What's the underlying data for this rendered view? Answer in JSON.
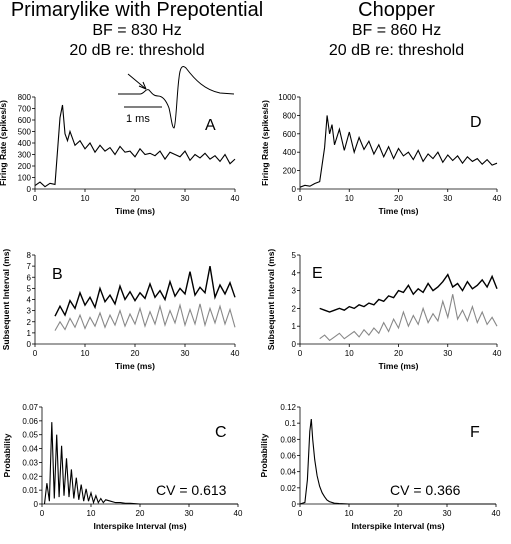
{
  "columns": [
    {
      "title": "Primarylike with Prepotential",
      "bf": "BF = 830 Hz",
      "level": "20 dB re: threshold"
    },
    {
      "title": "Chopper",
      "bf": "BF = 860 Hz",
      "level": "20 dB re: threshold"
    }
  ],
  "inset": {
    "scale_label": "1 ms"
  },
  "chart_data": [
    {
      "panel": "A",
      "type": "line",
      "xlabel": "Time (ms)",
      "ylabel": "Firing Rate (spikes/s)",
      "xlim": [
        0,
        40
      ],
      "ylim": [
        0,
        800
      ],
      "xticks": [
        0,
        10,
        20,
        30,
        40
      ],
      "yticks": [
        0,
        100,
        200,
        300,
        400,
        500,
        600,
        700,
        800
      ],
      "series": [
        {
          "x": [
            0,
            1,
            2,
            3,
            4,
            5,
            5.5,
            6,
            6.5,
            7,
            8,
            9,
            10,
            11,
            12,
            13,
            14,
            15,
            16,
            17,
            18,
            19,
            20,
            21,
            22,
            23,
            24,
            25,
            26,
            27,
            28,
            29,
            30,
            31,
            32,
            33,
            34,
            35,
            36,
            37,
            38,
            39,
            40
          ],
          "y": [
            30,
            60,
            20,
            50,
            40,
            620,
            730,
            480,
            420,
            500,
            380,
            420,
            350,
            400,
            320,
            380,
            330,
            360,
            300,
            370,
            320,
            330,
            280,
            350,
            300,
            310,
            290,
            330,
            260,
            320,
            300,
            280,
            330,
            250,
            300,
            270,
            310,
            260,
            290,
            240,
            300,
            220,
            260
          ]
        }
      ]
    },
    {
      "panel": "B",
      "type": "line",
      "xlabel": "Time (ms)",
      "ylabel": "Subsequent Interval (ms)",
      "xlim": [
        0,
        40
      ],
      "ylim": [
        0,
        8
      ],
      "xticks": [
        0,
        10,
        20,
        30,
        40
      ],
      "yticks": [
        0,
        1,
        2,
        3,
        4,
        5,
        6,
        7,
        8
      ],
      "series": [
        {
          "color": "#000000",
          "x": [
            4,
            5,
            6,
            7,
            8,
            9,
            10,
            11,
            12,
            13,
            14,
            15,
            16,
            17,
            18,
            19,
            20,
            21,
            22,
            23,
            24,
            25,
            26,
            27,
            28,
            29,
            30,
            31,
            32,
            33,
            34,
            35,
            36,
            37,
            38,
            39,
            40
          ],
          "y": [
            2.5,
            3.4,
            2.6,
            3.9,
            3.2,
            4.6,
            3.5,
            4.2,
            3.3,
            5.0,
            3.8,
            4.4,
            3.6,
            5.2,
            4.0,
            4.7,
            3.9,
            4.6,
            4.1,
            5.4,
            4.2,
            4.8,
            4.0,
            5.6,
            4.3,
            5.0,
            4.5,
            6.5,
            4.4,
            5.1,
            4.6,
            7.0,
            4.2,
            5.3,
            4.5,
            5.5,
            4.2
          ]
        },
        {
          "color": "#888888",
          "x": [
            4,
            5,
            6,
            7,
            8,
            9,
            10,
            11,
            12,
            13,
            14,
            15,
            16,
            17,
            18,
            19,
            20,
            21,
            22,
            23,
            24,
            25,
            26,
            27,
            28,
            29,
            30,
            31,
            32,
            33,
            34,
            35,
            36,
            37,
            38,
            39,
            40
          ],
          "y": [
            1.2,
            2.0,
            1.3,
            2.3,
            1.5,
            2.6,
            1.4,
            2.4,
            1.6,
            2.8,
            1.5,
            2.6,
            1.7,
            3.0,
            1.6,
            2.7,
            1.8,
            3.2,
            1.6,
            2.9,
            1.8,
            3.4,
            1.7,
            3.0,
            1.9,
            3.5,
            1.7,
            3.1,
            1.8,
            3.6,
            1.7,
            3.2,
            1.9,
            3.4,
            1.8,
            3.1,
            1.5
          ]
        }
      ]
    },
    {
      "panel": "C",
      "type": "line",
      "xlabel": "Interspike Interval (ms)",
      "ylabel": "Probability",
      "xlim": [
        0,
        40
      ],
      "ylim": [
        0,
        0.07
      ],
      "xticks": [
        0,
        10,
        20,
        30,
        40
      ],
      "yticks": [
        0,
        0.01,
        0.02,
        0.03,
        0.04,
        0.05,
        0.06,
        0.07
      ],
      "annotation": "CV = 0.613",
      "series": [
        {
          "x": [
            0.5,
            1,
            1.5,
            2,
            2.5,
            3,
            3.5,
            4,
            4.5,
            5,
            5.5,
            6,
            6.5,
            7,
            7.5,
            8,
            8.5,
            9,
            9.5,
            10,
            10.5,
            11,
            11.5,
            12,
            12.5,
            13,
            14,
            15,
            16,
            17,
            18,
            20,
            25,
            30,
            40
          ],
          "y": [
            0,
            0.015,
            0.002,
            0.059,
            0.004,
            0.05,
            0.005,
            0.042,
            0.006,
            0.033,
            0.005,
            0.025,
            0.004,
            0.019,
            0.003,
            0.014,
            0.002,
            0.011,
            0.002,
            0.008,
            0.001,
            0.006,
            0.001,
            0.004,
            0.001,
            0.003,
            0.002,
            0.001,
            0.001,
            0.0005,
            0.0005,
            0,
            0,
            0,
            0
          ]
        }
      ]
    },
    {
      "panel": "D",
      "type": "line",
      "xlabel": "Time (ms)",
      "ylabel": "Firing Rate (spikes/s)",
      "xlim": [
        0,
        40
      ],
      "ylim": [
        0,
        1000
      ],
      "xticks": [
        0,
        10,
        20,
        30,
        40
      ],
      "yticks": [
        0,
        200,
        400,
        600,
        800,
        1000
      ],
      "series": [
        {
          "x": [
            0,
            1,
            2,
            3,
            4,
            5,
            5.5,
            6,
            6.5,
            7,
            8,
            9,
            10,
            11,
            12,
            13,
            14,
            15,
            16,
            17,
            18,
            19,
            20,
            21,
            22,
            23,
            24,
            25,
            26,
            27,
            28,
            29,
            30,
            31,
            32,
            33,
            34,
            35,
            36,
            37,
            38,
            39,
            40
          ],
          "y": [
            20,
            40,
            30,
            60,
            80,
            450,
            800,
            600,
            700,
            480,
            650,
            420,
            620,
            400,
            560,
            430,
            520,
            380,
            480,
            350,
            460,
            330,
            440,
            360,
            400,
            320,
            420,
            300,
            380,
            330,
            400,
            290,
            370,
            310,
            360,
            280,
            350,
            300,
            330,
            270,
            320,
            260,
            280
          ]
        }
      ]
    },
    {
      "panel": "E",
      "type": "line",
      "xlabel": "Time (ms)",
      "ylabel": "Subsequent Interval (ms)",
      "xlim": [
        0,
        40
      ],
      "ylim": [
        0,
        5
      ],
      "xticks": [
        0,
        10,
        20,
        30,
        40
      ],
      "yticks": [
        0,
        1,
        2,
        3,
        4,
        5
      ],
      "series": [
        {
          "color": "#000000",
          "x": [
            4,
            5,
            6,
            7,
            8,
            9,
            10,
            11,
            12,
            13,
            14,
            15,
            16,
            17,
            18,
            19,
            20,
            21,
            22,
            23,
            24,
            25,
            26,
            27,
            28,
            29,
            30,
            31,
            32,
            33,
            34,
            35,
            36,
            37,
            38,
            39,
            40
          ],
          "y": [
            2.0,
            1.9,
            1.8,
            1.9,
            2.0,
            1.9,
            2.1,
            2.0,
            2.2,
            2.1,
            2.3,
            2.2,
            2.5,
            2.4,
            2.7,
            2.6,
            3.0,
            2.9,
            3.3,
            2.8,
            3.1,
            2.9,
            3.4,
            3.0,
            3.2,
            3.5,
            3.9,
            3.2,
            3.4,
            3.0,
            3.5,
            3.1,
            3.3,
            3.6,
            3.2,
            3.8,
            3.1
          ]
        },
        {
          "color": "#888888",
          "x": [
            4,
            5,
            6,
            7,
            8,
            9,
            10,
            11,
            12,
            13,
            14,
            15,
            16,
            17,
            18,
            19,
            20,
            21,
            22,
            23,
            24,
            25,
            26,
            27,
            28,
            29,
            30,
            31,
            32,
            33,
            34,
            35,
            36,
            37,
            38,
            39,
            40
          ],
          "y": [
            0.3,
            0.5,
            0.2,
            0.4,
            0.6,
            0.3,
            0.5,
            0.7,
            0.4,
            0.8,
            0.5,
            0.9,
            0.6,
            1.2,
            0.7,
            1.4,
            0.9,
            1.8,
            1.0,
            1.6,
            1.1,
            2.0,
            1.2,
            1.7,
            1.3,
            2.4,
            1.5,
            2.8,
            1.4,
            1.9,
            1.3,
            2.1,
            1.2,
            1.8,
            1.1,
            1.5,
            1.0
          ]
        }
      ]
    },
    {
      "panel": "F",
      "type": "line",
      "xlabel": "Interspike Interval (ms)",
      "ylabel": "Probability",
      "xlim": [
        0,
        40
      ],
      "ylim": [
        0,
        0.12
      ],
      "xticks": [
        0,
        10,
        20,
        30,
        40
      ],
      "yticks": [
        0,
        0.02,
        0.04,
        0.06,
        0.08,
        0.1,
        0.12
      ],
      "annotation": "CV = 0.366",
      "series": [
        {
          "x": [
            0,
            1,
            1.5,
            2,
            2.3,
            2.6,
            3,
            3.5,
            4,
            4.5,
            5,
            5.5,
            6,
            7,
            8,
            10,
            20,
            30,
            40
          ],
          "y": [
            0,
            0.002,
            0.03,
            0.09,
            0.105,
            0.08,
            0.055,
            0.035,
            0.022,
            0.014,
            0.009,
            0.005,
            0.003,
            0.001,
            0.0005,
            0,
            0,
            0,
            0
          ]
        }
      ]
    }
  ]
}
